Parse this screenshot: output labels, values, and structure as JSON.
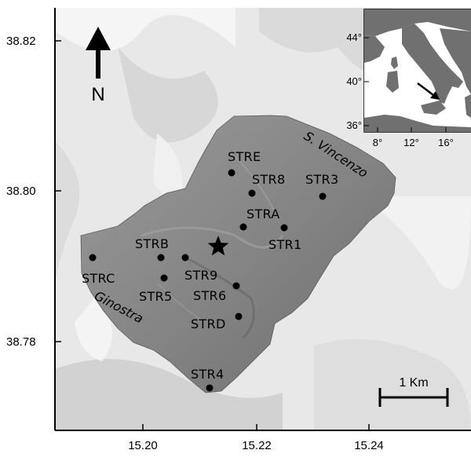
{
  "map": {
    "axes": {
      "y_ticks": [
        "38.82",
        "38.80",
        "38.78"
      ],
      "x_ticks": [
        "15.20",
        "15.22",
        "15.24"
      ]
    },
    "north_arrow": {
      "label": "N",
      "icon": "north-arrow-icon"
    },
    "scale_bar": {
      "label": "1 Km"
    },
    "place_labels": [
      {
        "text": "S. Vincenzo"
      },
      {
        "text": "Ginostra"
      }
    ],
    "stations": [
      {
        "name": "STRE"
      },
      {
        "name": "STR8"
      },
      {
        "name": "STR3"
      },
      {
        "name": "STRA"
      },
      {
        "name": "STR1"
      },
      {
        "name": "STRB"
      },
      {
        "name": "STRC"
      },
      {
        "name": "STR9"
      },
      {
        "name": "STR5"
      },
      {
        "name": "STR6"
      },
      {
        "name": "STRD"
      },
      {
        "name": "STR4"
      }
    ],
    "crater_marker": {
      "icon": "star-icon"
    },
    "inset": {
      "lat_ticks": [
        "44°",
        "40°",
        "36°"
      ],
      "lon_ticks": [
        "8°",
        "12°",
        "16°"
      ],
      "arrow_icon": "arrow-icon"
    },
    "colors": {
      "land": "#7f7f7f",
      "island": "#8a8a8a",
      "sea_relief": "#e6e6e6",
      "inset_land": "#707070"
    }
  }
}
